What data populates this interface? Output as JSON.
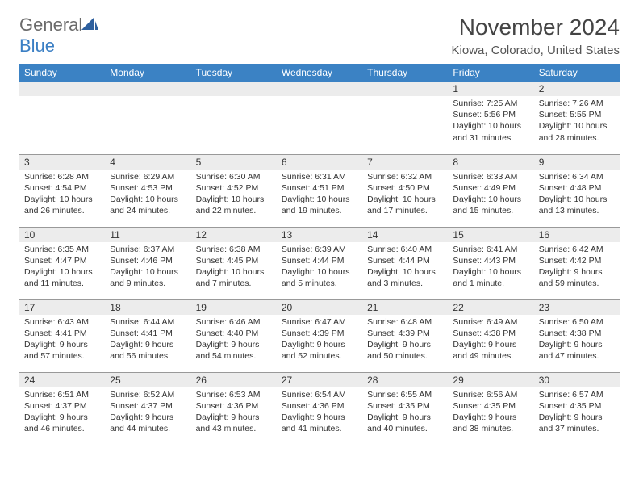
{
  "logo": {
    "text_gray": "General",
    "text_blue": "Blue"
  },
  "title": "November 2024",
  "location": "Kiowa, Colorado, United States",
  "colors": {
    "header_bg": "#3b82c4",
    "header_text": "#ffffff",
    "day_num_bg": "#ececec",
    "border": "#999999"
  },
  "day_headers": [
    "Sunday",
    "Monday",
    "Tuesday",
    "Wednesday",
    "Thursday",
    "Friday",
    "Saturday"
  ],
  "weeks": [
    [
      {
        "num": "",
        "sunrise": "",
        "sunset": "",
        "daylight": ""
      },
      {
        "num": "",
        "sunrise": "",
        "sunset": "",
        "daylight": ""
      },
      {
        "num": "",
        "sunrise": "",
        "sunset": "",
        "daylight": ""
      },
      {
        "num": "",
        "sunrise": "",
        "sunset": "",
        "daylight": ""
      },
      {
        "num": "",
        "sunrise": "",
        "sunset": "",
        "daylight": ""
      },
      {
        "num": "1",
        "sunrise": "Sunrise: 7:25 AM",
        "sunset": "Sunset: 5:56 PM",
        "daylight": "Daylight: 10 hours and 31 minutes."
      },
      {
        "num": "2",
        "sunrise": "Sunrise: 7:26 AM",
        "sunset": "Sunset: 5:55 PM",
        "daylight": "Daylight: 10 hours and 28 minutes."
      }
    ],
    [
      {
        "num": "3",
        "sunrise": "Sunrise: 6:28 AM",
        "sunset": "Sunset: 4:54 PM",
        "daylight": "Daylight: 10 hours and 26 minutes."
      },
      {
        "num": "4",
        "sunrise": "Sunrise: 6:29 AM",
        "sunset": "Sunset: 4:53 PM",
        "daylight": "Daylight: 10 hours and 24 minutes."
      },
      {
        "num": "5",
        "sunrise": "Sunrise: 6:30 AM",
        "sunset": "Sunset: 4:52 PM",
        "daylight": "Daylight: 10 hours and 22 minutes."
      },
      {
        "num": "6",
        "sunrise": "Sunrise: 6:31 AM",
        "sunset": "Sunset: 4:51 PM",
        "daylight": "Daylight: 10 hours and 19 minutes."
      },
      {
        "num": "7",
        "sunrise": "Sunrise: 6:32 AM",
        "sunset": "Sunset: 4:50 PM",
        "daylight": "Daylight: 10 hours and 17 minutes."
      },
      {
        "num": "8",
        "sunrise": "Sunrise: 6:33 AM",
        "sunset": "Sunset: 4:49 PM",
        "daylight": "Daylight: 10 hours and 15 minutes."
      },
      {
        "num": "9",
        "sunrise": "Sunrise: 6:34 AM",
        "sunset": "Sunset: 4:48 PM",
        "daylight": "Daylight: 10 hours and 13 minutes."
      }
    ],
    [
      {
        "num": "10",
        "sunrise": "Sunrise: 6:35 AM",
        "sunset": "Sunset: 4:47 PM",
        "daylight": "Daylight: 10 hours and 11 minutes."
      },
      {
        "num": "11",
        "sunrise": "Sunrise: 6:37 AM",
        "sunset": "Sunset: 4:46 PM",
        "daylight": "Daylight: 10 hours and 9 minutes."
      },
      {
        "num": "12",
        "sunrise": "Sunrise: 6:38 AM",
        "sunset": "Sunset: 4:45 PM",
        "daylight": "Daylight: 10 hours and 7 minutes."
      },
      {
        "num": "13",
        "sunrise": "Sunrise: 6:39 AM",
        "sunset": "Sunset: 4:44 PM",
        "daylight": "Daylight: 10 hours and 5 minutes."
      },
      {
        "num": "14",
        "sunrise": "Sunrise: 6:40 AM",
        "sunset": "Sunset: 4:44 PM",
        "daylight": "Daylight: 10 hours and 3 minutes."
      },
      {
        "num": "15",
        "sunrise": "Sunrise: 6:41 AM",
        "sunset": "Sunset: 4:43 PM",
        "daylight": "Daylight: 10 hours and 1 minute."
      },
      {
        "num": "16",
        "sunrise": "Sunrise: 6:42 AM",
        "sunset": "Sunset: 4:42 PM",
        "daylight": "Daylight: 9 hours and 59 minutes."
      }
    ],
    [
      {
        "num": "17",
        "sunrise": "Sunrise: 6:43 AM",
        "sunset": "Sunset: 4:41 PM",
        "daylight": "Daylight: 9 hours and 57 minutes."
      },
      {
        "num": "18",
        "sunrise": "Sunrise: 6:44 AM",
        "sunset": "Sunset: 4:41 PM",
        "daylight": "Daylight: 9 hours and 56 minutes."
      },
      {
        "num": "19",
        "sunrise": "Sunrise: 6:46 AM",
        "sunset": "Sunset: 4:40 PM",
        "daylight": "Daylight: 9 hours and 54 minutes."
      },
      {
        "num": "20",
        "sunrise": "Sunrise: 6:47 AM",
        "sunset": "Sunset: 4:39 PM",
        "daylight": "Daylight: 9 hours and 52 minutes."
      },
      {
        "num": "21",
        "sunrise": "Sunrise: 6:48 AM",
        "sunset": "Sunset: 4:39 PM",
        "daylight": "Daylight: 9 hours and 50 minutes."
      },
      {
        "num": "22",
        "sunrise": "Sunrise: 6:49 AM",
        "sunset": "Sunset: 4:38 PM",
        "daylight": "Daylight: 9 hours and 49 minutes."
      },
      {
        "num": "23",
        "sunrise": "Sunrise: 6:50 AM",
        "sunset": "Sunset: 4:38 PM",
        "daylight": "Daylight: 9 hours and 47 minutes."
      }
    ],
    [
      {
        "num": "24",
        "sunrise": "Sunrise: 6:51 AM",
        "sunset": "Sunset: 4:37 PM",
        "daylight": "Daylight: 9 hours and 46 minutes."
      },
      {
        "num": "25",
        "sunrise": "Sunrise: 6:52 AM",
        "sunset": "Sunset: 4:37 PM",
        "daylight": "Daylight: 9 hours and 44 minutes."
      },
      {
        "num": "26",
        "sunrise": "Sunrise: 6:53 AM",
        "sunset": "Sunset: 4:36 PM",
        "daylight": "Daylight: 9 hours and 43 minutes."
      },
      {
        "num": "27",
        "sunrise": "Sunrise: 6:54 AM",
        "sunset": "Sunset: 4:36 PM",
        "daylight": "Daylight: 9 hours and 41 minutes."
      },
      {
        "num": "28",
        "sunrise": "Sunrise: 6:55 AM",
        "sunset": "Sunset: 4:35 PM",
        "daylight": "Daylight: 9 hours and 40 minutes."
      },
      {
        "num": "29",
        "sunrise": "Sunrise: 6:56 AM",
        "sunset": "Sunset: 4:35 PM",
        "daylight": "Daylight: 9 hours and 38 minutes."
      },
      {
        "num": "30",
        "sunrise": "Sunrise: 6:57 AM",
        "sunset": "Sunset: 4:35 PM",
        "daylight": "Daylight: 9 hours and 37 minutes."
      }
    ]
  ]
}
